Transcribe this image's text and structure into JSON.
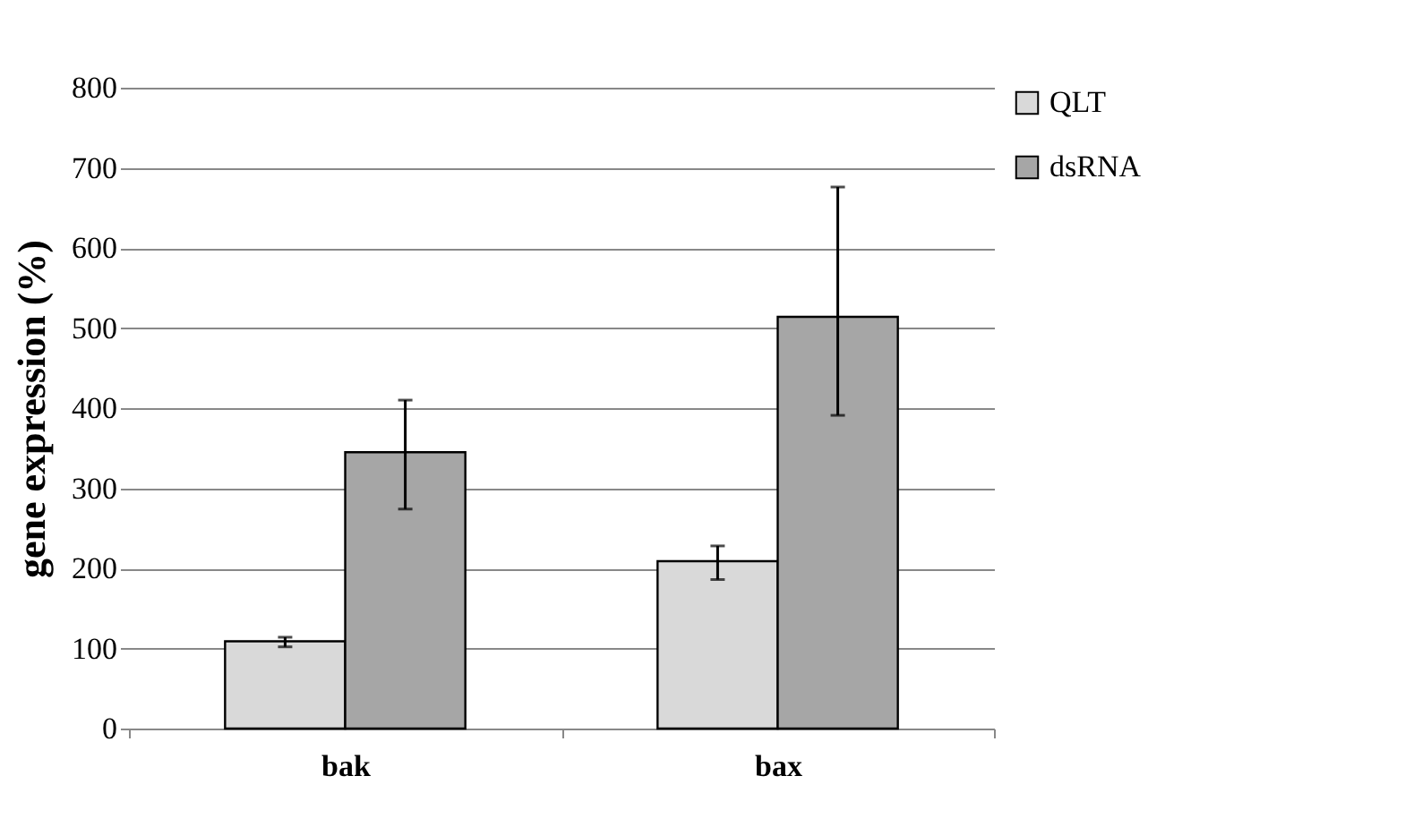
{
  "chart_data": {
    "type": "bar",
    "ylabel": "gene expression (%)",
    "categories": [
      "bak",
      "bax"
    ],
    "series": [
      {
        "name": "QLT",
        "color": "#d9d9d9",
        "values": [
          109,
          209
        ],
        "errors": [
          [
            102,
            114
          ],
          [
            186,
            228
          ]
        ]
      },
      {
        "name": "dsRNA",
        "color": "#a6a6a6",
        "values": [
          345,
          514
        ],
        "errors": [
          [
            274,
            410
          ],
          [
            391,
            676
          ]
        ]
      }
    ],
    "ylim": [
      0,
      800
    ],
    "yticks": [
      0,
      100,
      200,
      300,
      400,
      500,
      600,
      700,
      800
    ],
    "grid": "y",
    "legend": "right"
  }
}
